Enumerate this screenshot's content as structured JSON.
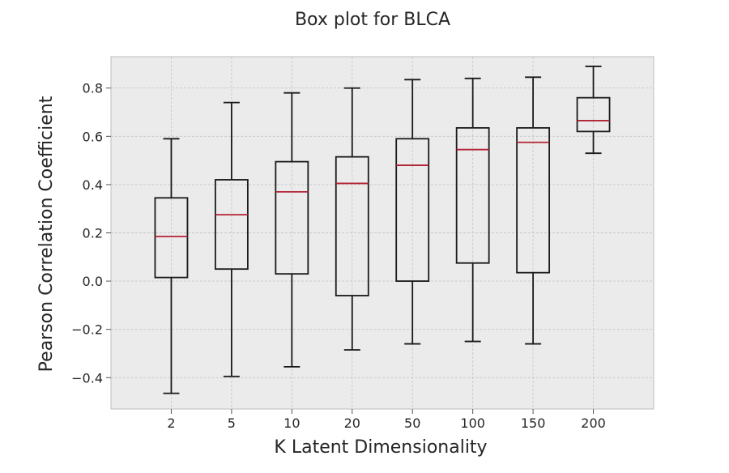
{
  "chart_data": {
    "type": "box",
    "title": "Box plot for BLCA",
    "xlabel": "K Latent Dimensionality",
    "ylabel": "Pearson Correlation Coefficient",
    "ylim": [
      -0.53,
      0.93
    ],
    "yticks": [
      -0.4,
      -0.2,
      0.0,
      0.2,
      0.4,
      0.6,
      0.8
    ],
    "ytick_labels": [
      "−0.4",
      "−0.2",
      "0.0",
      "0.2",
      "0.4",
      "0.6",
      "0.8"
    ],
    "grid": true,
    "categories": [
      "2",
      "5",
      "10",
      "20",
      "50",
      "100",
      "150",
      "200"
    ],
    "boxes": [
      {
        "category": "2",
        "whisker_low": -0.465,
        "q1": 0.015,
        "median": 0.185,
        "q3": 0.345,
        "whisker_high": 0.59
      },
      {
        "category": "5",
        "whisker_low": -0.395,
        "q1": 0.05,
        "median": 0.275,
        "q3": 0.42,
        "whisker_high": 0.74
      },
      {
        "category": "10",
        "whisker_low": -0.355,
        "q1": 0.03,
        "median": 0.37,
        "q3": 0.495,
        "whisker_high": 0.78
      },
      {
        "category": "20",
        "whisker_low": -0.285,
        "q1": -0.06,
        "median": 0.405,
        "q3": 0.515,
        "whisker_high": 0.8
      },
      {
        "category": "50",
        "whisker_low": -0.26,
        "q1": 0.0,
        "median": 0.48,
        "q3": 0.59,
        "whisker_high": 0.835
      },
      {
        "category": "100",
        "whisker_low": -0.25,
        "q1": 0.075,
        "median": 0.545,
        "q3": 0.635,
        "whisker_high": 0.84
      },
      {
        "category": "150",
        "whisker_low": -0.26,
        "q1": 0.035,
        "median": 0.575,
        "q3": 0.635,
        "whisker_high": 0.845
      },
      {
        "category": "200",
        "whisker_low": 0.53,
        "q1": 0.62,
        "median": 0.665,
        "q3": 0.76,
        "whisker_high": 0.89
      }
    ],
    "colors": {
      "background": "#ebebeb",
      "box": "#1a1a1a",
      "median": "#b22234",
      "grid": "#c8c8c8",
      "frame": "#bdbdbd"
    }
  }
}
